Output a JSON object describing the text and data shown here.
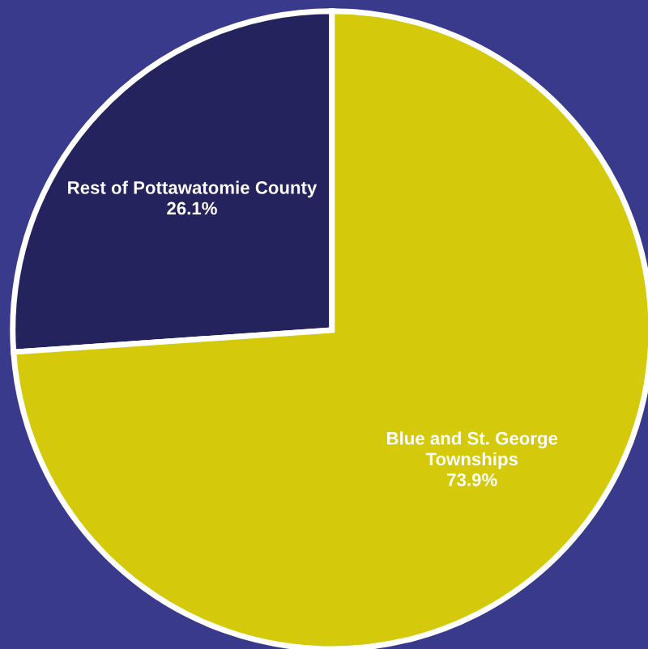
{
  "chart_data": {
    "type": "pie",
    "categories": [
      "Rest of Pottawatomie County",
      "Blue and St. George\nTownships"
    ],
    "values": [
      26.1,
      73.9
    ],
    "colors": [
      "#24235e",
      "#d4c90a"
    ],
    "value_labels": [
      "26.1%",
      "73.9%"
    ]
  }
}
